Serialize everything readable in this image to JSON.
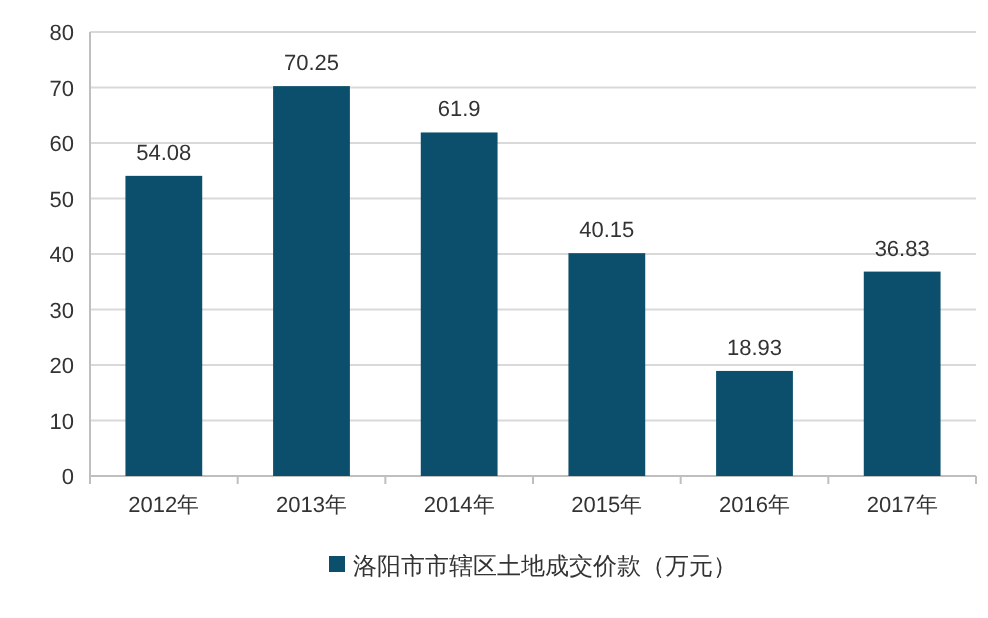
{
  "chart_data": {
    "type": "bar",
    "categories": [
      "2012年",
      "2013年",
      "2014年",
      "2015年",
      "2016年",
      "2017年"
    ],
    "series": [
      {
        "name": "洛阳市市辖区土地成交价款（万元）",
        "color": "#0b4f6c",
        "values": [
          54.08,
          70.25,
          61.9,
          40.15,
          18.93,
          36.83
        ]
      }
    ],
    "ylim": [
      0,
      80
    ],
    "yticks": [
      0,
      10,
      20,
      30,
      40,
      50,
      60,
      70,
      80
    ],
    "grid": "y",
    "legend": "bottom",
    "data_labels": true
  }
}
